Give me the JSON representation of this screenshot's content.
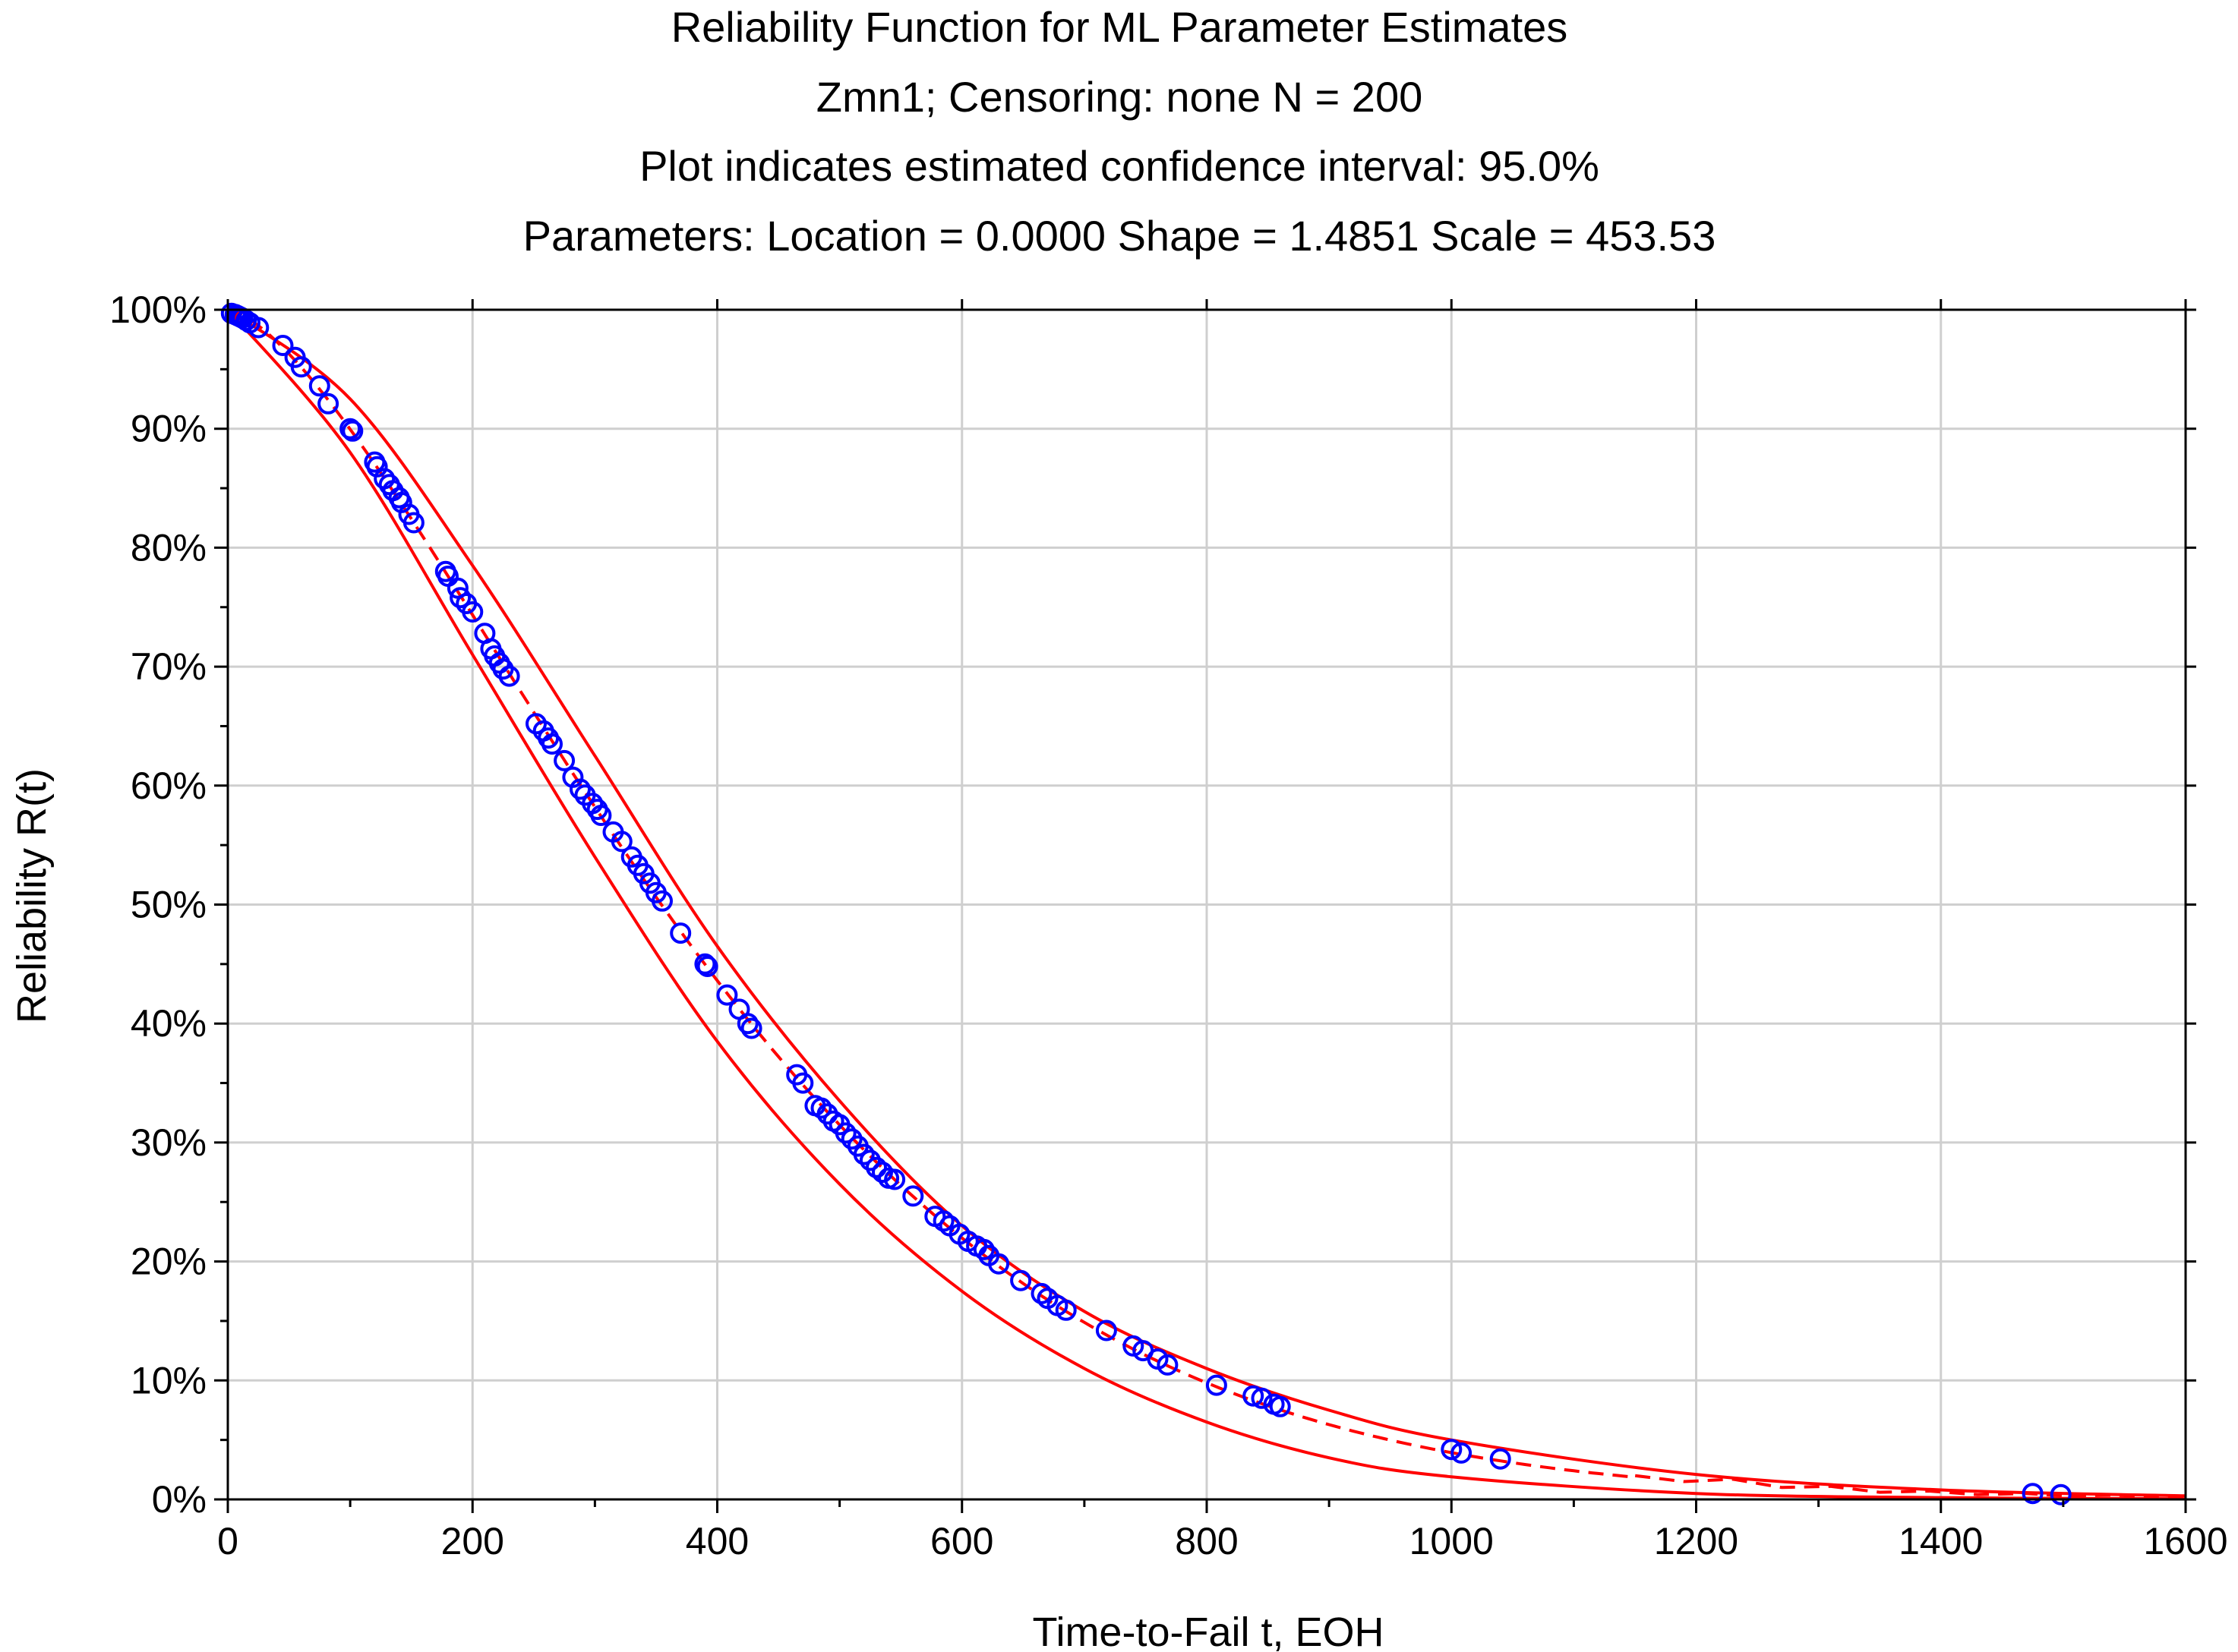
{
  "chart_data": {
    "type": "scatter",
    "title": [
      "Reliability Function for ML Parameter Estimates",
      "Zmn1; Censoring: none N = 200",
      "Plot indicates estimated confidence interval: 95.0%",
      "Parameters: Location = 0.0000  Shape = 1.4851  Scale = 453.53"
    ],
    "xlabel": "Time-to-Fail t, EOH",
    "ylabel": "Reliability R(t)",
    "xlim": [
      0,
      1600
    ],
    "ylim": [
      0,
      100
    ],
    "x_ticks": [
      0,
      200,
      400,
      600,
      800,
      1000,
      1200,
      1400,
      1600
    ],
    "x_tick_labels": [
      "0",
      "200",
      "400",
      "600",
      "800",
      "1000",
      "1200",
      "1400",
      "1600"
    ],
    "y_ticks": [
      0,
      10,
      20,
      30,
      40,
      50,
      60,
      70,
      80,
      90,
      100
    ],
    "y_tick_labels": [
      "0%",
      "10%",
      "20%",
      "30%",
      "40%",
      "50%",
      "60%",
      "70%",
      "80%",
      "90%",
      "100%"
    ],
    "grid": true,
    "parameters": {
      "location": 0.0,
      "shape": 1.4851,
      "scale": 453.53
    },
    "series": [
      {
        "name": "Fitted reliability R(t)",
        "kind": "dashed-line",
        "color": "#ff0000"
      },
      {
        "name": "95% confidence upper bound",
        "kind": "line",
        "color": "#ff0000",
        "x": [
          0,
          100,
          200,
          300,
          400,
          500,
          600,
          700,
          800,
          900,
          1000,
          1200,
          1400,
          1600
        ],
        "values": [
          100,
          92.5,
          78.5,
          62.5,
          46.5,
          33.5,
          23.0,
          15.8,
          11.0,
          7.5,
          5.0,
          2.1,
          0.8,
          0.3
        ]
      },
      {
        "name": "95% confidence lower bound",
        "kind": "line",
        "color": "#ff0000",
        "x": [
          0,
          100,
          200,
          300,
          400,
          500,
          600,
          700,
          800,
          900,
          1000,
          1200,
          1400,
          1600
        ],
        "values": [
          100,
          88.0,
          71.0,
          54.0,
          38.5,
          26.5,
          17.5,
          11.0,
          6.5,
          3.5,
          1.9,
          0.5,
          0.15,
          0.05
        ]
      },
      {
        "name": "Observed failure times",
        "kind": "markers",
        "color": "#0000ff",
        "x": [
          3,
          6,
          8,
          10,
          12,
          15,
          18,
          25,
          45,
          55,
          60,
          75,
          82,
          100,
          102,
          120,
          122,
          128,
          132,
          135,
          140,
          142,
          148,
          152,
          178,
          180,
          188,
          190,
          195,
          200,
          210,
          215,
          218,
          222,
          225,
          230,
          252,
          258,
          262,
          265,
          275,
          282,
          288,
          292,
          298,
          302,
          305,
          315,
          322,
          330,
          335,
          340,
          345,
          350,
          355,
          370,
          390,
          392,
          408,
          418,
          425,
          428,
          465,
          470,
          480,
          485,
          490,
          495,
          500,
          505,
          510,
          515,
          520,
          525,
          530,
          535,
          540,
          545,
          560,
          578,
          585,
          590,
          598,
          605,
          612,
          618,
          622,
          630,
          648,
          665,
          670,
          678,
          685,
          718,
          740,
          748,
          760,
          768,
          808,
          838,
          845,
          855,
          860,
          1000,
          1008,
          1040,
          1475,
          1498
        ],
        "values": [
          99.7,
          99.6,
          99.5,
          99.4,
          99.3,
          99.1,
          98.9,
          98.5,
          97.0,
          96.0,
          95.2,
          93.6,
          92.1,
          90.0,
          89.8,
          87.2,
          86.8,
          85.8,
          85.3,
          84.8,
          84.2,
          83.8,
          82.8,
          82.1,
          78.0,
          77.6,
          76.6,
          75.8,
          75.3,
          74.6,
          72.8,
          71.5,
          70.9,
          70.3,
          69.8,
          69.2,
          65.2,
          64.6,
          64.0,
          63.5,
          62.1,
          60.7,
          59.7,
          59.2,
          58.5,
          58.0,
          57.5,
          56.1,
          55.3,
          54.0,
          53.3,
          52.6,
          51.8,
          51.0,
          50.3,
          47.6,
          45.0,
          44.8,
          42.4,
          41.2,
          40.0,
          39.6,
          35.7,
          35.0,
          33.1,
          32.9,
          32.4,
          31.8,
          31.5,
          30.8,
          30.3,
          29.7,
          29.0,
          28.5,
          27.9,
          27.5,
          27.0,
          26.9,
          25.5,
          23.8,
          23.4,
          23.0,
          22.3,
          21.7,
          21.3,
          21.0,
          20.5,
          19.8,
          18.4,
          17.3,
          16.9,
          16.3,
          15.9,
          14.2,
          12.9,
          12.5,
          11.8,
          11.3,
          9.6,
          8.7,
          8.5,
          8.0,
          7.8,
          4.2,
          3.9,
          3.4,
          0.5,
          0.4
        ]
      }
    ]
  }
}
